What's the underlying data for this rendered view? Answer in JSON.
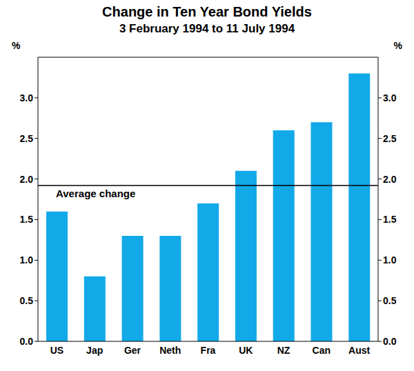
{
  "chart_data": {
    "type": "bar",
    "title": "Change in Ten Year Bond Yields",
    "subtitle": "3 February 1994 to 11 July 1994",
    "ylabel": "%",
    "categories": [
      "US",
      "Jap",
      "Ger",
      "Neth",
      "Fra",
      "UK",
      "NZ",
      "Can",
      "Aust"
    ],
    "values": [
      1.6,
      0.8,
      1.3,
      1.3,
      1.7,
      2.1,
      2.6,
      2.7,
      3.3
    ],
    "color": "#12a9e8",
    "ylim": [
      0,
      3.5
    ],
    "yticks": [
      {
        "value": 0,
        "label": "0.0"
      },
      {
        "value": 0.5,
        "label": "0.5"
      },
      {
        "value": 1,
        "label": "1.0"
      },
      {
        "value": 1.5,
        "label": "1.5"
      },
      {
        "value": 2,
        "label": "2.0"
      },
      {
        "value": 2.5,
        "label": "2.5"
      },
      {
        "value": 3,
        "label": "3.0"
      }
    ],
    "annotations": [
      {
        "label": "Average change",
        "y": 1.92
      }
    ],
    "grid": false
  }
}
